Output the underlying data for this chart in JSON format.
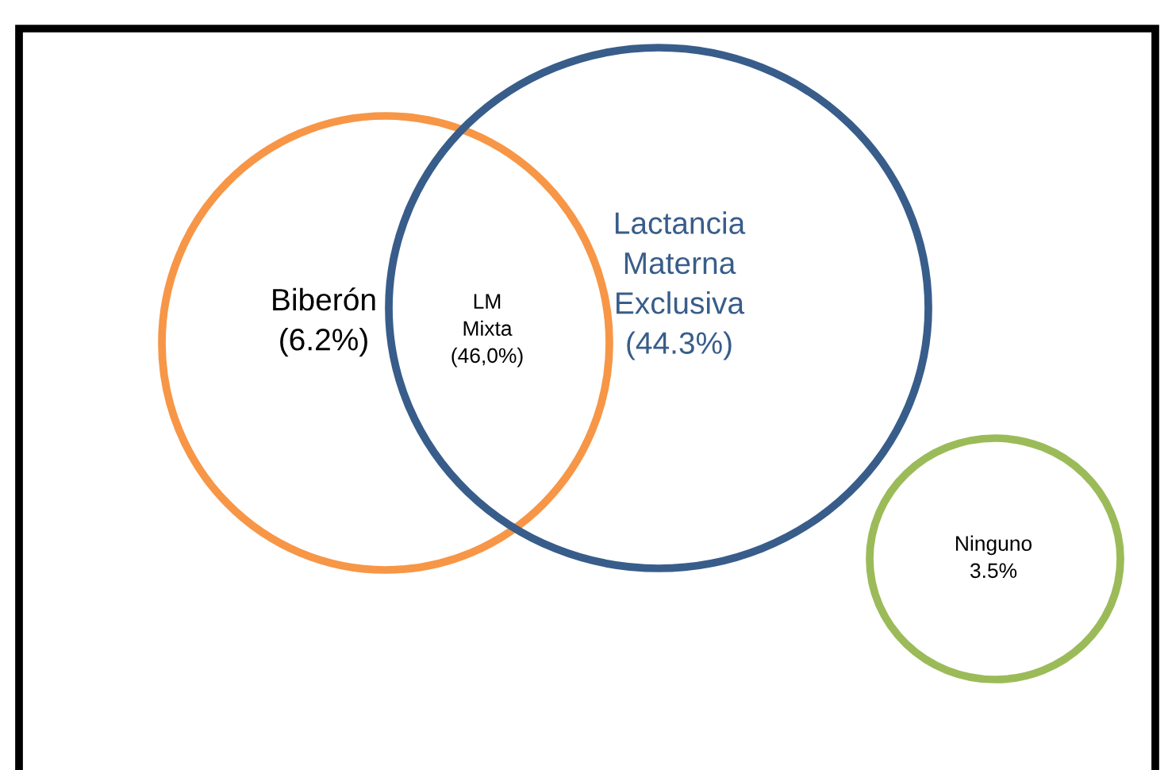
{
  "chart_data": {
    "type": "other",
    "categories": [
      "Biberón",
      "LM\nMixta",
      "Lactancia\nMaterna\nExclusiva",
      "Ninguno"
    ],
    "values": [
      6.2,
      46.0,
      44.3,
      3.5
    ],
    "value_labels": [
      "(6.2%)",
      "(46,0%)",
      "(44.3%)",
      "3.5%"
    ],
    "colors": [
      "#f79646",
      null,
      "#385d8a",
      "#9bbb59"
    ]
  }
}
